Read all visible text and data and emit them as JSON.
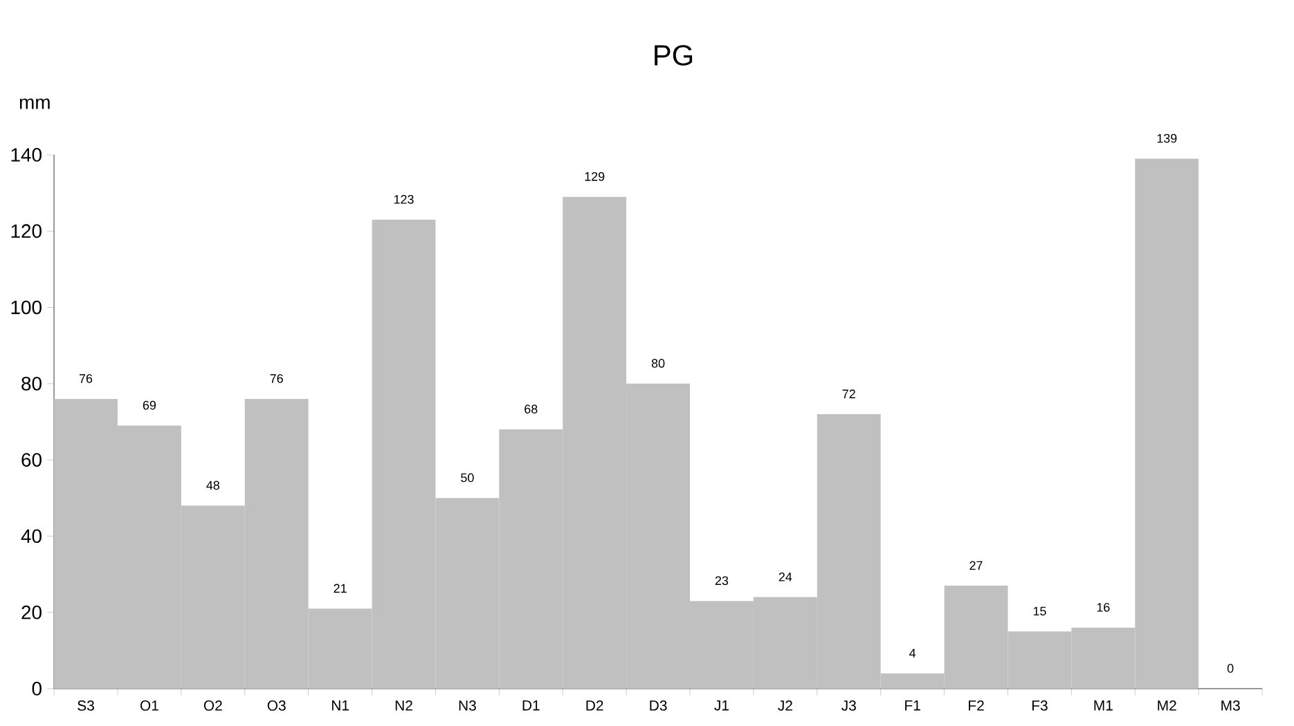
{
  "chart_data": {
    "type": "bar",
    "title": "PG",
    "ylabel": "mm",
    "categories": [
      "S3",
      "O1",
      "O2",
      "O3",
      "N1",
      "N2",
      "N3",
      "D1",
      "D2",
      "D3",
      "J1",
      "J2",
      "J3",
      "F1",
      "F2",
      "F3",
      "M1",
      "M2",
      "M3"
    ],
    "values": [
      76,
      69,
      48,
      76,
      21,
      123,
      50,
      68,
      129,
      80,
      23,
      24,
      72,
      4,
      27,
      15,
      16,
      139,
      0
    ],
    "color": "#c0c0c0",
    "ylim": [
      0,
      140
    ],
    "yticks": [
      0,
      20,
      40,
      60,
      80,
      100,
      120,
      140
    ],
    "data_labels": true
  }
}
